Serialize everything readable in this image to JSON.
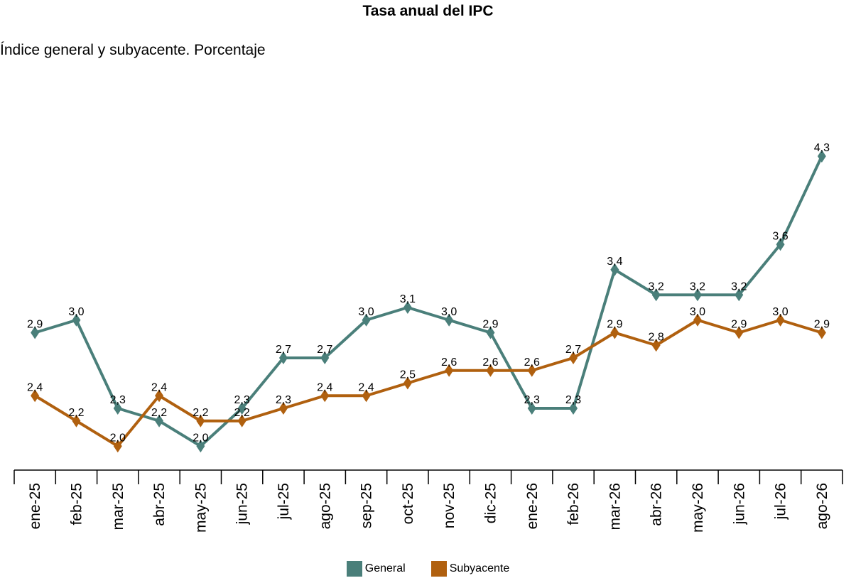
{
  "chart_data": {
    "type": "line",
    "title": "Tasa anual del IPC",
    "subtitle": "Índice general y subyacente. Porcentaje",
    "categories": [
      "ene-25",
      "feb-25",
      "mar-25",
      "abr-25",
      "may-25",
      "jun-25",
      "jul-25",
      "ago-25",
      "sep-25",
      "oct-25",
      "nov-25",
      "dic-25",
      "ene-26",
      "feb-26",
      "mar-26",
      "abr-26",
      "may-26",
      "jun-26",
      "jul-26",
      "ago-26"
    ],
    "series": [
      {
        "name": "General",
        "color": "#4a7f7a",
        "values": [
          2.9,
          3.0,
          2.3,
          2.2,
          2.0,
          2.3,
          2.7,
          2.7,
          3.0,
          3.1,
          3.0,
          2.9,
          2.3,
          2.3,
          3.4,
          3.2,
          3.2,
          3.2,
          3.6,
          4.3
        ],
        "labels": [
          "2,9",
          "3,0",
          "2,3",
          "2,2",
          "2,0",
          "2,3",
          "2,7",
          "2,7",
          "3,0",
          "3,1",
          "3,0",
          "2,9",
          "2,3",
          "2,3",
          "3,4",
          "3,2",
          "3,2",
          "3,2",
          "3,6",
          "4,3"
        ]
      },
      {
        "name": "Subyacente",
        "color": "#b0600f",
        "values": [
          2.4,
          2.2,
          2.0,
          2.4,
          2.2,
          2.2,
          2.3,
          2.4,
          2.4,
          2.5,
          2.6,
          2.6,
          2.6,
          2.7,
          2.9,
          2.8,
          3.0,
          2.9,
          3.0,
          2.9
        ],
        "labels": [
          "2,4",
          "2,2",
          "2,0",
          "2,4",
          "2,2",
          "2,2",
          "2,3",
          "2,4",
          "2,4",
          "2,5",
          "2,6",
          "2,6",
          "2,6",
          "2,7",
          "2,9",
          "2,8",
          "3,0",
          "2,9",
          "3,0",
          "2,9"
        ]
      }
    ],
    "xlabel": "",
    "ylabel": "",
    "grid": false,
    "legend_position": "bottom-center"
  }
}
